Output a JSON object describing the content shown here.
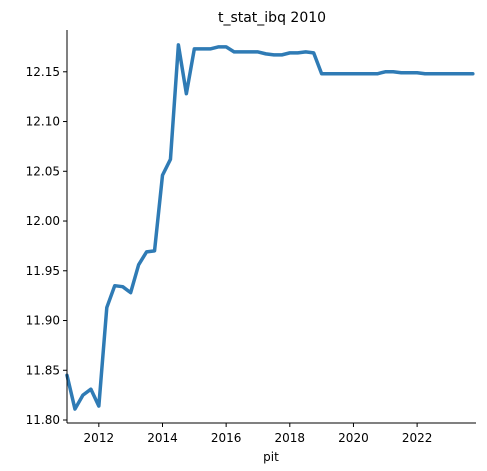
{
  "chart_data": {
    "type": "line",
    "title": "t_stat_ibq 2010",
    "xlabel": "pit",
    "ylabel": "",
    "x_ticks": [
      2012,
      2014,
      2016,
      2018,
      2020,
      2022
    ],
    "y_ticks": [
      "11.80",
      "11.85",
      "11.90",
      "11.95",
      "12.00",
      "12.05",
      "12.10",
      "12.15"
    ],
    "xlim": [
      2011.0,
      2023.85
    ],
    "ylim": [
      11.797,
      12.192
    ],
    "grid": false,
    "legend": "none",
    "color": "#2f7bb5",
    "series": [
      {
        "x": [
          2011.0,
          2011.25,
          2011.5,
          2011.75,
          2012.0,
          2012.25,
          2012.5,
          2012.75,
          2013.0,
          2013.25,
          2013.5,
          2013.75,
          2014.0,
          2014.25,
          2014.5,
          2014.75,
          2015.0,
          2015.25,
          2015.5,
          2015.75,
          2016.0,
          2016.25,
          2016.5,
          2016.75,
          2017.0,
          2017.25,
          2017.5,
          2017.75,
          2018.0,
          2018.25,
          2018.5,
          2018.75,
          2019.0,
          2019.25,
          2019.5,
          2019.75,
          2020.0,
          2020.25,
          2020.5,
          2020.75,
          2021.0,
          2021.25,
          2021.5,
          2021.75,
          2022.0,
          2022.25,
          2022.5,
          2022.75,
          2023.0,
          2023.25,
          2023.5,
          2023.75
        ],
        "y": [
          11.845,
          11.811,
          11.825,
          11.831,
          11.814,
          11.913,
          11.935,
          11.934,
          11.928,
          11.956,
          11.969,
          11.97,
          12.046,
          12.062,
          12.177,
          12.128,
          12.173,
          12.173,
          12.173,
          12.175,
          12.175,
          12.17,
          12.17,
          12.17,
          12.17,
          12.168,
          12.167,
          12.167,
          12.169,
          12.169,
          12.17,
          12.169,
          12.148,
          12.148,
          12.148,
          12.148,
          12.148,
          12.148,
          12.148,
          12.148,
          12.15,
          12.15,
          12.149,
          12.149,
          12.149,
          12.148,
          12.148,
          12.148,
          12.148,
          12.148,
          12.148,
          12.148
        ]
      }
    ]
  }
}
